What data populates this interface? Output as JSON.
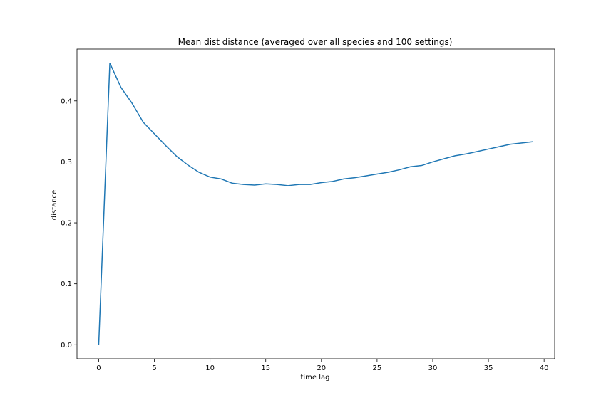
{
  "chart_data": {
    "type": "line",
    "title": "Mean dist distance (averaged over all species and 100 settings)",
    "xlabel": "time lag",
    "ylabel": "distance",
    "xlim": [
      -1.95,
      40.95
    ],
    "ylim": [
      -0.023,
      0.485
    ],
    "xticks": [
      0,
      5,
      10,
      15,
      20,
      25,
      30,
      35,
      40
    ],
    "yticks": [
      0.0,
      0.1,
      0.2,
      0.3,
      0.4
    ],
    "ytick_labels": [
      "0.0",
      "0.1",
      "0.2",
      "0.3",
      "0.4"
    ],
    "grid": false,
    "series": [
      {
        "color": "#1f77b4",
        "x": [
          0,
          1,
          2,
          3,
          4,
          5,
          6,
          7,
          8,
          9,
          10,
          11,
          12,
          13,
          14,
          15,
          16,
          17,
          18,
          19,
          20,
          21,
          22,
          23,
          24,
          25,
          26,
          27,
          28,
          29,
          30,
          31,
          32,
          33,
          34,
          35,
          36,
          37,
          38,
          39
        ],
        "y": [
          0.0,
          0.462,
          0.422,
          0.396,
          0.365,
          0.346,
          0.327,
          0.309,
          0.295,
          0.283,
          0.275,
          0.272,
          0.265,
          0.263,
          0.262,
          0.264,
          0.263,
          0.261,
          0.263,
          0.263,
          0.266,
          0.268,
          0.272,
          0.274,
          0.277,
          0.28,
          0.283,
          0.287,
          0.292,
          0.294,
          0.3,
          0.305,
          0.31,
          0.313,
          0.317,
          0.321,
          0.325,
          0.329,
          0.331,
          0.333
        ]
      }
    ]
  }
}
